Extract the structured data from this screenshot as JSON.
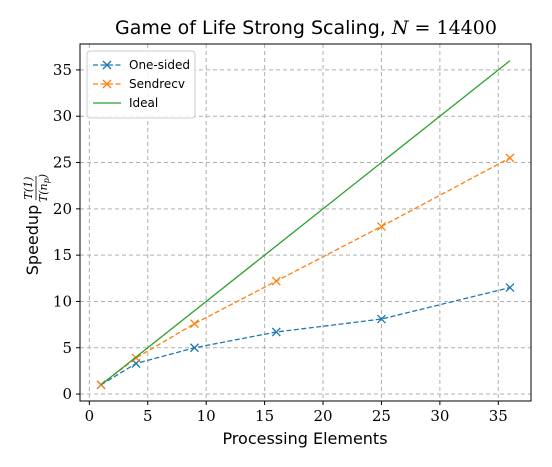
{
  "chart_data": {
    "type": "line",
    "title": "Game of Life Strong Scaling, ",
    "title_math_var": "N",
    "title_math_eq": " = ",
    "title_math_value": "14400",
    "xlabel": "Processing Elements",
    "ylabel": "Speedup",
    "ylabel_fraction_numerator": "T(1)",
    "ylabel_fraction_denominator": "T(n",
    "ylabel_fraction_subscript": "p",
    "ylabel_fraction_close": ")",
    "xlim": [
      -0.8,
      37.8
    ],
    "ylim": [
      -0.75,
      37.8
    ],
    "xticks": [
      0,
      5,
      10,
      15,
      20,
      25,
      30,
      35
    ],
    "yticks": [
      0,
      5,
      10,
      15,
      20,
      25,
      30,
      35
    ],
    "grid": true,
    "legend_position": "top-left",
    "series": [
      {
        "name": "One-sided",
        "color": "#1f77b4",
        "linestyle": "dashed",
        "marker": "x",
        "x": [
          1,
          4,
          9,
          16,
          25,
          36
        ],
        "y": [
          1.0,
          3.3,
          5.0,
          6.7,
          8.1,
          11.5
        ]
      },
      {
        "name": "Sendrecv",
        "color": "#ff7f0e",
        "linestyle": "dashed",
        "marker": "x",
        "x": [
          1,
          4,
          9,
          16,
          25,
          36
        ],
        "y": [
          1.0,
          3.9,
          7.6,
          12.2,
          18.1,
          25.5
        ]
      },
      {
        "name": "Ideal",
        "color": "#2ca02c",
        "linestyle": "solid",
        "marker": "none",
        "x": [
          1,
          36
        ],
        "y": [
          1,
          36
        ]
      }
    ]
  }
}
